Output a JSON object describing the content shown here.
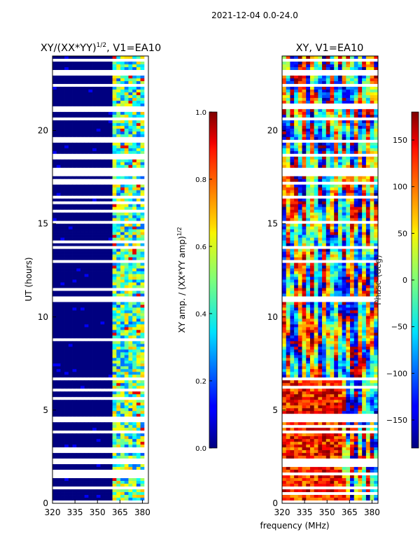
{
  "figure": {
    "suptitle": "2021-12-04 0.0-24.0",
    "xlabel": "frequency (MHz)"
  },
  "chart_data": [
    {
      "type": "heatmap",
      "title": "XY/(XX*YY)^1/2, V1=EA10",
      "title_main": "XY/(XX*YY)",
      "title_exp": "1/2",
      "title_suffix": ", V1=EA10",
      "xlabel": "frequency (MHz)",
      "ylabel": "UT (hours)",
      "xlim": [
        320,
        384
      ],
      "ylim": [
        0,
        24
      ],
      "xticks": [
        320,
        335,
        350,
        365,
        380
      ],
      "yticks": [
        0,
        5,
        10,
        15,
        20
      ],
      "colormap": "jet",
      "colorbar": {
        "label_main": "XY amp. / (XX*YY amp)",
        "label_exp": "1/2",
        "range": [
          0,
          1
        ],
        "ticks": [
          "0.0",
          "0.2",
          "0.4",
          "0.6",
          "0.8",
          "1.0"
        ]
      },
      "description_values": {
        "low_band_MHz": [
          320,
          360
        ],
        "low_band_level": 0.0,
        "high_band_MHz": [
          360,
          382
        ],
        "high_band_level_range": [
          0.2,
          0.7
        ]
      }
    },
    {
      "type": "heatmap",
      "title": "XY, V1=EA10",
      "xlabel": "frequency (MHz)",
      "ylabel": "",
      "xlim": [
        320,
        384
      ],
      "ylim": [
        0,
        24
      ],
      "xticks": [
        320,
        335,
        350,
        365,
        380
      ],
      "yticks": [
        0,
        5,
        10,
        15,
        20
      ],
      "colormap": "jet",
      "colorbar": {
        "label": "Phase (deg)",
        "range": [
          -180,
          180
        ],
        "ticks": [
          "150",
          "100",
          "50",
          "0",
          "−50",
          "−100",
          "−150"
        ],
        "tick_values": [
          150,
          100,
          50,
          0,
          -50,
          -100,
          -150
        ]
      }
    }
  ],
  "flag_gaps_hours": [
    [
      23.65,
      23.8
    ],
    [
      22.95,
      23.3
    ],
    [
      22.3,
      22.5
    ],
    [
      21.2,
      21.3
    ],
    [
      20.55,
      20.65
    ],
    [
      19.3,
      19.5
    ],
    [
      18.55,
      18.7
    ],
    [
      17.55,
      17.95
    ],
    [
      17.15,
      17.3
    ],
    [
      16.4,
      16.5
    ],
    [
      15.05,
      15.15
    ],
    [
      13.7,
      13.8
    ],
    [
      12.9,
      13.0
    ],
    [
      11.5,
      11.6
    ],
    [
      10.75,
      11.05
    ],
    [
      8.95,
      9.05
    ],
    [
      6.55,
      6.75
    ],
    [
      5.2,
      5.3
    ],
    [
      4.4,
      4.6
    ],
    [
      3.75,
      3.85
    ],
    [
      2.05,
      2.35
    ],
    [
      1.55,
      1.65
    ],
    [
      0.75,
      0.85
    ],
    [
      0.05,
      0.1
    ]
  ]
}
